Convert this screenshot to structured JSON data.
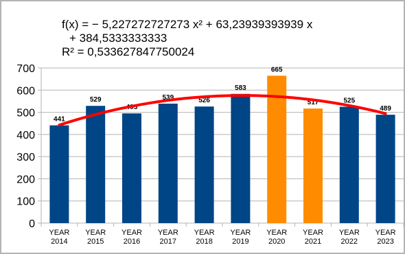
{
  "trendline": {
    "equation_line1": "f(x) = − 5,227272727273 x² + 63,23939393939 x",
    "equation_line2": "+ 384,5333333333",
    "r_squared": "R² = 0,533627847750024",
    "color": "#ff0000"
  },
  "colors": {
    "default_bar": "#004586",
    "highlight_bar": "#ff8c00",
    "axis": "#b3b3b3",
    "gridline": "#b3b3b3",
    "frame": "#b3b3b3"
  },
  "chart_data": {
    "type": "bar",
    "categories": [
      "YEAR 2014",
      "YEAR 2015",
      "YEAR 2016",
      "YEAR 2017",
      "YEAR 2018",
      "YEAR 2019",
      "YEAR 2020",
      "YEAR 2021",
      "YEAR 2022",
      "YEAR 2023"
    ],
    "category_lines": [
      [
        "YEAR",
        "2014"
      ],
      [
        "YEAR",
        "2015"
      ],
      [
        "YEAR",
        "2016"
      ],
      [
        "YEAR",
        "2017"
      ],
      [
        "YEAR",
        "2018"
      ],
      [
        "YEAR",
        "2019"
      ],
      [
        "YEAR",
        "2020"
      ],
      [
        "YEAR",
        "2021"
      ],
      [
        "YEAR",
        "2022"
      ],
      [
        "YEAR",
        "2023"
      ]
    ],
    "values": [
      441,
      529,
      495,
      539,
      526,
      583,
      665,
      517,
      525,
      489
    ],
    "data_labels": [
      "441",
      "529",
      "495",
      "539",
      "526",
      "583",
      "665",
      "517",
      "525",
      "489"
    ],
    "highlighted": [
      false,
      false,
      false,
      false,
      false,
      false,
      true,
      true,
      false,
      false
    ],
    "ylim": [
      0,
      700
    ],
    "yticks": [
      0,
      100,
      200,
      300,
      400,
      500,
      600,
      700
    ],
    "ytick_labels": [
      "0",
      "100",
      "200",
      "300",
      "400",
      "500",
      "600",
      "700"
    ],
    "trend": {
      "type": "polynomial",
      "order": 2,
      "a": -5.227272727273,
      "b": 63.23939393939,
      "c": 384.5333333333
    },
    "grid": true,
    "legend": "none",
    "title": "",
    "xlabel": "",
    "ylabel": ""
  }
}
